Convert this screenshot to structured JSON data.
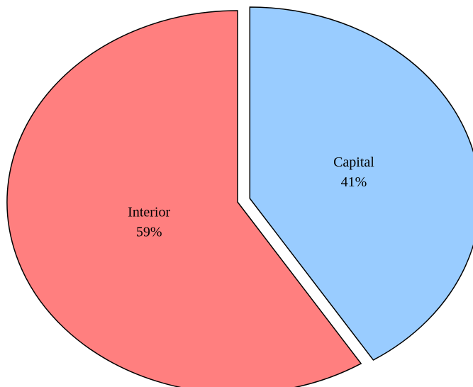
{
  "chart_data": {
    "type": "pie",
    "categories": [
      "Capital",
      "Interior"
    ],
    "values": [
      41,
      59
    ],
    "value_labels": [
      "41%",
      "59%"
    ],
    "colors": [
      "#99ccff",
      "#ff7f7f"
    ]
  }
}
